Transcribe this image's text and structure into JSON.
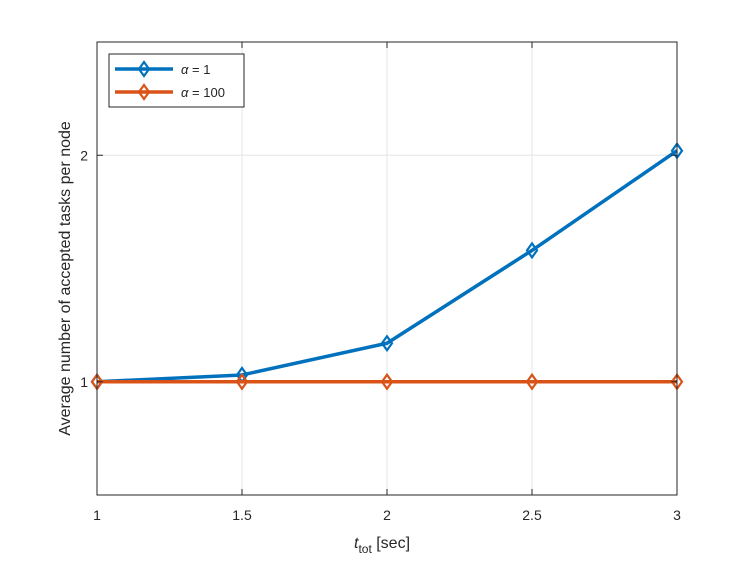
{
  "chart_data": {
    "type": "line",
    "title": "",
    "xlabel": {
      "main": "t",
      "sub": "tot",
      "unit": " [sec]"
    },
    "ylabel": "Average number of accepted tasks per node",
    "x": [
      1,
      1.5,
      2,
      2.5,
      3
    ],
    "xlim": [
      1,
      3
    ],
    "ylim": [
      0.5,
      2.5
    ],
    "xticks": [
      1,
      1.5,
      2,
      2.5,
      3
    ],
    "xtick_labels": [
      "1",
      "1.5",
      "2",
      "2.5",
      "3"
    ],
    "yticks": [
      1,
      2
    ],
    "ytick_labels": [
      "1",
      "2"
    ],
    "grid": true,
    "legend_position": "top-left",
    "series": [
      {
        "name_symbol": "α",
        "name_rest": " = 1",
        "values": [
          1.0,
          1.03,
          1.17,
          1.58,
          2.02
        ],
        "color": "#0072BD",
        "marker": "diamond"
      },
      {
        "name_symbol": "α",
        "name_rest": " = 100",
        "values": [
          1.0,
          1.0,
          1.0,
          1.0,
          1.0
        ],
        "color": "#D95319",
        "marker": "diamond"
      }
    ]
  }
}
